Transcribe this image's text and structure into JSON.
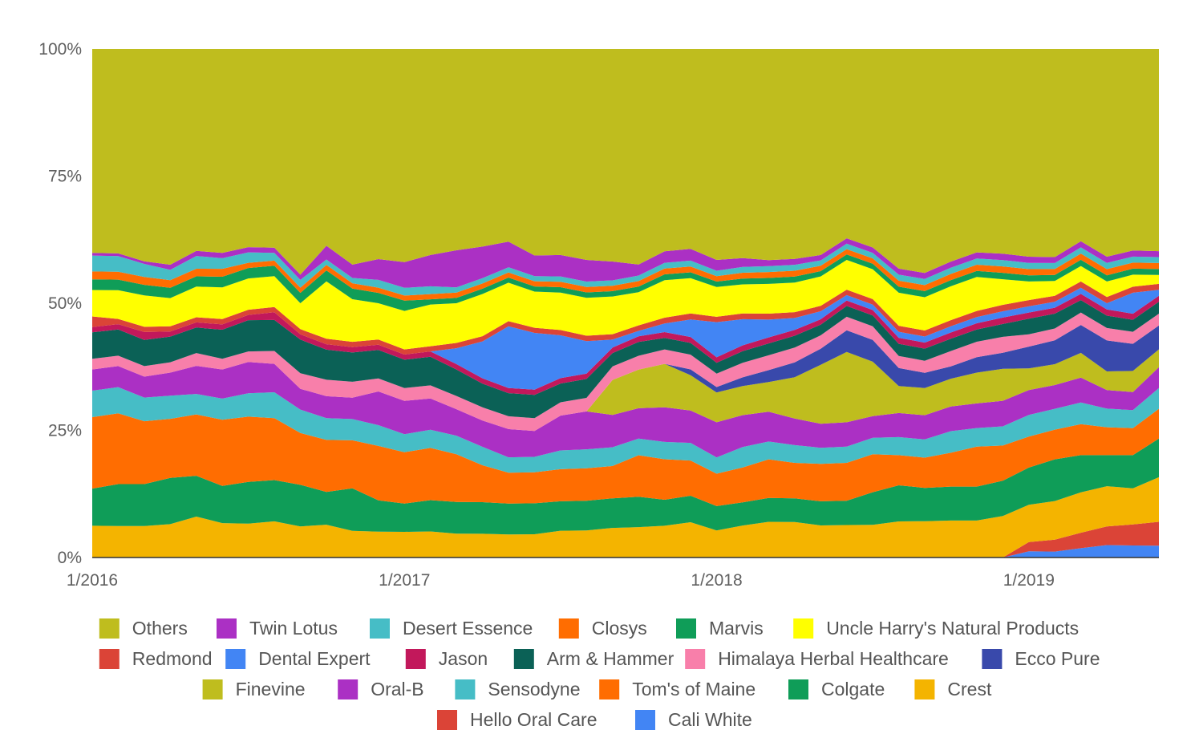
{
  "chart_data": {
    "type": "area",
    "stacked": "percent",
    "title": "",
    "xlabel": "",
    "ylabel": "",
    "ylim": [
      0,
      100
    ],
    "y_ticks": [
      {
        "value": 0,
        "label": "0%"
      },
      {
        "value": 25,
        "label": "25%"
      },
      {
        "value": 50,
        "label": "50%"
      },
      {
        "value": 75,
        "label": "75%"
      },
      {
        "value": 100,
        "label": "100%"
      }
    ],
    "x": [
      "2016-01",
      "2016-02",
      "2016-03",
      "2016-04",
      "2016-05",
      "2016-06",
      "2016-07",
      "2016-08",
      "2016-09",
      "2016-10",
      "2016-11",
      "2016-12",
      "2017-01",
      "2017-02",
      "2017-03",
      "2017-04",
      "2017-05",
      "2017-06",
      "2017-07",
      "2017-08",
      "2017-09",
      "2017-10",
      "2017-11",
      "2017-12",
      "2018-01",
      "2018-02",
      "2018-03",
      "2018-04",
      "2018-05",
      "2018-06",
      "2018-07",
      "2018-08",
      "2018-09",
      "2018-10",
      "2018-11",
      "2018-12",
      "2019-01",
      "2019-02",
      "2019-03",
      "2019-04",
      "2019-05",
      "2019-06"
    ],
    "x_ticks": [
      {
        "value": "2016-01",
        "label": "1/2016"
      },
      {
        "value": "2017-01",
        "label": "1/2017"
      },
      {
        "value": "2018-01",
        "label": "1/2018"
      },
      {
        "value": "2019-01",
        "label": "1/2019"
      }
    ],
    "grid": false,
    "legend_position": "bottom",
    "series": [
      {
        "name": "Cali White",
        "color": "#4285f4",
        "values": [
          0,
          0,
          0,
          0,
          0,
          0,
          0,
          0,
          0,
          0,
          0,
          0,
          0,
          0,
          0,
          0,
          0,
          0,
          0,
          0,
          0,
          0,
          0,
          0,
          0,
          0,
          0,
          0,
          0,
          0,
          0,
          0,
          0,
          0,
          0,
          0,
          1,
          1,
          1.5,
          2,
          2,
          2
        ]
      },
      {
        "name": "Hello Oral Care",
        "color": "#db4437",
        "values": [
          0,
          0,
          0,
          0,
          0,
          0,
          0,
          0,
          0,
          0,
          0,
          0,
          0,
          0,
          0,
          0,
          0,
          0,
          0,
          0,
          0,
          0,
          0,
          0,
          0,
          0,
          0,
          0,
          0,
          0,
          0,
          0,
          0,
          0,
          0,
          0,
          1.5,
          2,
          2.5,
          3,
          3.5,
          4
        ]
      },
      {
        "name": "Crest",
        "color": "#f4b400",
        "values": [
          6,
          6,
          6,
          6.5,
          8,
          6.5,
          6.5,
          7,
          6,
          6,
          5,
          5,
          5,
          5,
          4.5,
          4.5,
          4.5,
          4.5,
          5,
          5,
          5.5,
          5.5,
          5.5,
          6,
          5,
          5.5,
          6,
          6,
          6,
          6,
          6,
          6,
          6,
          6,
          6,
          6.5,
          6,
          6.5,
          6.5,
          6.5,
          6,
          7.5
        ]
      },
      {
        "name": "Colgate",
        "color": "#0f9d58",
        "values": [
          7,
          8,
          8,
          9,
          8,
          7,
          8,
          8,
          8,
          6,
          8,
          6,
          5.5,
          6,
          6,
          6,
          6,
          6,
          5.5,
          5.5,
          5.5,
          5.5,
          4.5,
          4.5,
          4.5,
          4,
          4,
          4,
          4.5,
          4.5,
          6,
          6,
          5.5,
          5.5,
          5.5,
          5.5,
          6,
          7,
          6,
          5,
          5.5,
          6.5
        ]
      },
      {
        "name": "Tom's of Maine",
        "color": "#ff6d01",
        "values": [
          13.5,
          13.5,
          12,
          11.5,
          12,
          12.5,
          12.5,
          12,
          10,
          9.5,
          9,
          10.5,
          10,
          10,
          9,
          7,
          6,
          6,
          6,
          6,
          6,
          7.5,
          7,
          6,
          6,
          6,
          6.5,
          6,
          7,
          7,
          7,
          5,
          5,
          5.5,
          6.5,
          5.5,
          5,
          5,
          5,
          4.5,
          4.5,
          5
        ]
      },
      {
        "name": "Sensodyne",
        "color": "#46bdc6",
        "values": [
          5,
          5,
          4.5,
          4.5,
          4,
          4,
          4.5,
          5,
          4.5,
          4,
          4,
          4,
          3.5,
          3.5,
          3.5,
          3.5,
          3,
          3,
          3.5,
          3.5,
          3.5,
          3,
          3,
          3,
          3,
          3.5,
          3,
          3,
          3,
          3,
          3,
          3,
          3,
          3.5,
          3,
          3,
          3.5,
          3.5,
          3.5,
          3,
          3,
          3.5
        ]
      },
      {
        "name": "Oral-B",
        "color": "#ab30c4",
        "values": [
          4,
          4,
          4,
          4.5,
          5.5,
          5.5,
          6,
          5.5,
          4,
          4,
          4,
          6.5,
          6.5,
          6,
          5,
          5,
          5.5,
          5,
          6.5,
          7,
          6,
          5.5,
          6,
          5.5,
          6.5,
          5.5,
          5,
          4.5,
          4.5,
          4.5,
          4,
          4,
          4,
          4,
          4,
          4,
          4,
          4,
          4,
          3,
          3,
          3.5
        ]
      },
      {
        "name": "Finevine",
        "color": "#bfbd1e",
        "values": [
          0,
          0,
          0,
          0,
          0,
          0,
          0,
          0,
          0,
          0,
          0,
          0,
          0,
          0,
          0,
          0,
          0,
          0,
          0,
          0,
          6.5,
          7,
          7.5,
          6,
          5.5,
          5,
          5,
          7,
          11,
          13,
          10,
          4.5,
          4.5,
          4.5,
          5,
          5,
          3.5,
          3.5,
          4,
          3,
          3.5,
          3
        ]
      },
      {
        "name": "Ecco Pure",
        "color": "#3949ab",
        "values": [
          0,
          0,
          0,
          0,
          0,
          0,
          0,
          0,
          0,
          0,
          0,
          0,
          0,
          0,
          0,
          0,
          0,
          0,
          0,
          0,
          0,
          0,
          0,
          1,
          1,
          1.5,
          2,
          2.5,
          3,
          4,
          4,
          3,
          2.5,
          2,
          2.5,
          2.5,
          3.5,
          4,
          4.5,
          5,
          4.5,
          4
        ]
      },
      {
        "name": "Himalaya Herbal Healthcare",
        "color": "#f87faa",
        "values": [
          2,
          2,
          2,
          2,
          2.5,
          2,
          2,
          2.5,
          3,
          3,
          3,
          2.5,
          2.5,
          2.5,
          2.5,
          2.5,
          2.5,
          2.5,
          2.5,
          2.5,
          2.5,
          2.5,
          2.5,
          2.5,
          2.5,
          2.5,
          2.5,
          2.5,
          2.5,
          2.5,
          2.5,
          2,
          2,
          2.5,
          2.5,
          2.5,
          2,
          2,
          2,
          2,
          2,
          2
        ]
      },
      {
        "name": "Arm & Hammer",
        "color": "#0b6156",
        "values": [
          5,
          5,
          5,
          5,
          5,
          5.5,
          6,
          6,
          6.5,
          5.5,
          5.5,
          5.5,
          5.5,
          5.5,
          5,
          4.5,
          4.5,
          4.5,
          3.5,
          3.5,
          2.5,
          2.5,
          2,
          2,
          2,
          2,
          2,
          2,
          2,
          2,
          2,
          2,
          2,
          2,
          2,
          2,
          2.5,
          2.5,
          2,
          2,
          2,
          2
        ]
      },
      {
        "name": "Jason",
        "color": "#c2185b",
        "values": [
          1,
          1,
          1.5,
          1,
          1,
          1,
          1,
          1.5,
          1,
          1,
          1,
          1,
          1,
          1,
          1,
          1,
          1,
          1,
          1,
          1,
          1,
          1,
          1,
          1,
          1,
          1,
          1,
          1,
          1,
          1,
          1,
          1,
          1,
          1,
          1,
          1,
          1,
          1,
          1,
          1,
          1,
          1
        ]
      },
      {
        "name": "Dental Expert",
        "color": "#4285f4",
        "values": [
          0,
          0,
          0,
          0,
          0,
          0,
          0,
          0,
          0,
          0,
          0,
          0,
          0,
          0,
          3,
          7,
          12,
          11,
          8,
          6,
          1.5,
          1,
          1.5,
          3,
          6.5,
          4.5,
          3,
          2,
          1.5,
          1,
          1,
          1,
          1,
          1,
          1,
          1,
          1,
          1,
          1,
          1,
          3.5,
          1
        ]
      },
      {
        "name": "Redmond",
        "color": "#db4437",
        "values": [
          2,
          1,
          1,
          1,
          1,
          1,
          1,
          1,
          1,
          1,
          1,
          1,
          1,
          1,
          1,
          1,
          1,
          1,
          1,
          1,
          1,
          1,
          1,
          1,
          1,
          1,
          1,
          1,
          1,
          1,
          1,
          1,
          1,
          1,
          1,
          1,
          1,
          1,
          1,
          1,
          1,
          1
        ]
      },
      {
        "name": "Uncle Harry's Natural Products",
        "color": "#ffff00",
        "values": [
          5,
          5.5,
          6,
          5.5,
          6,
          6,
          6,
          6,
          5,
          10.5,
          8,
          7,
          7.5,
          8,
          7.5,
          8,
          7.5,
          7,
          7,
          7,
          7,
          6,
          6.5,
          6,
          5.5,
          5,
          5,
          5,
          5.5,
          5.5,
          5.5,
          5.5,
          5.5,
          5.5,
          5.5,
          4,
          3,
          2.5,
          2.5,
          2.5,
          2,
          1.5
        ]
      },
      {
        "name": "Marvis",
        "color": "#0f9d58",
        "values": [
          2,
          2,
          2,
          2,
          2,
          2,
          2,
          2,
          2,
          2,
          2,
          2,
          2,
          1,
          1,
          1,
          1,
          1,
          1,
          1,
          1,
          1,
          1,
          1,
          1,
          1,
          1,
          1,
          1,
          1,
          1,
          1,
          1,
          1,
          1,
          1,
          1,
          1,
          1,
          1,
          1,
          1
        ]
      },
      {
        "name": "Closys",
        "color": "#ff6d01",
        "values": [
          1.5,
          1.5,
          1.5,
          1.5,
          1.5,
          1.5,
          1,
          1,
          1,
          1,
          1,
          1,
          1,
          1,
          1,
          1,
          1,
          1,
          1,
          1,
          1,
          1,
          1,
          1,
          1,
          1,
          1,
          1,
          1,
          1,
          1,
          1,
          1,
          1,
          1,
          1,
          1,
          1,
          1,
          1,
          1,
          1
        ]
      },
      {
        "name": "Desert Essence",
        "color": "#46bdc6",
        "values": [
          3,
          3,
          2.5,
          2,
          2.5,
          2,
          2,
          1.5,
          1.5,
          1,
          1,
          1.5,
          1.5,
          1.5,
          1,
          1,
          1,
          1,
          1,
          1,
          1,
          1,
          1,
          1,
          1,
          1,
          1,
          1,
          1,
          1,
          1,
          1,
          1,
          1,
          1,
          1,
          1,
          1,
          1,
          1,
          1,
          1
        ]
      },
      {
        "name": "Twin Lotus",
        "color": "#ab30c4",
        "values": [
          0.5,
          0.5,
          0.5,
          1,
          1,
          1,
          1,
          1,
          1,
          2.5,
          2.5,
          4,
          5,
          6,
          7,
          6,
          5,
          4,
          4,
          4,
          3.5,
          2,
          2,
          2,
          2,
          1.5,
          1,
          1,
          1,
          1,
          1,
          1,
          1,
          1,
          1,
          1,
          1,
          1,
          1,
          1,
          1,
          1
        ]
      },
      {
        "name": "Others",
        "color": "#bfbd1e",
        "values": [
          38.5,
          39,
          40.5,
          42,
          39.5,
          38.5,
          38,
          38.5,
          43.5,
          36,
          40.5,
          40.5,
          41.5,
          39.5,
          38,
          37.5,
          37.5,
          40,
          38.5,
          39,
          39.5,
          39,
          35,
          34,
          39,
          36,
          35.5,
          35.5,
          38.5,
          35,
          36.5,
          36.5,
          37,
          34.5,
          33,
          32,
          33.5,
          35,
          31,
          33.5,
          33.5,
          34
        ]
      }
    ]
  }
}
